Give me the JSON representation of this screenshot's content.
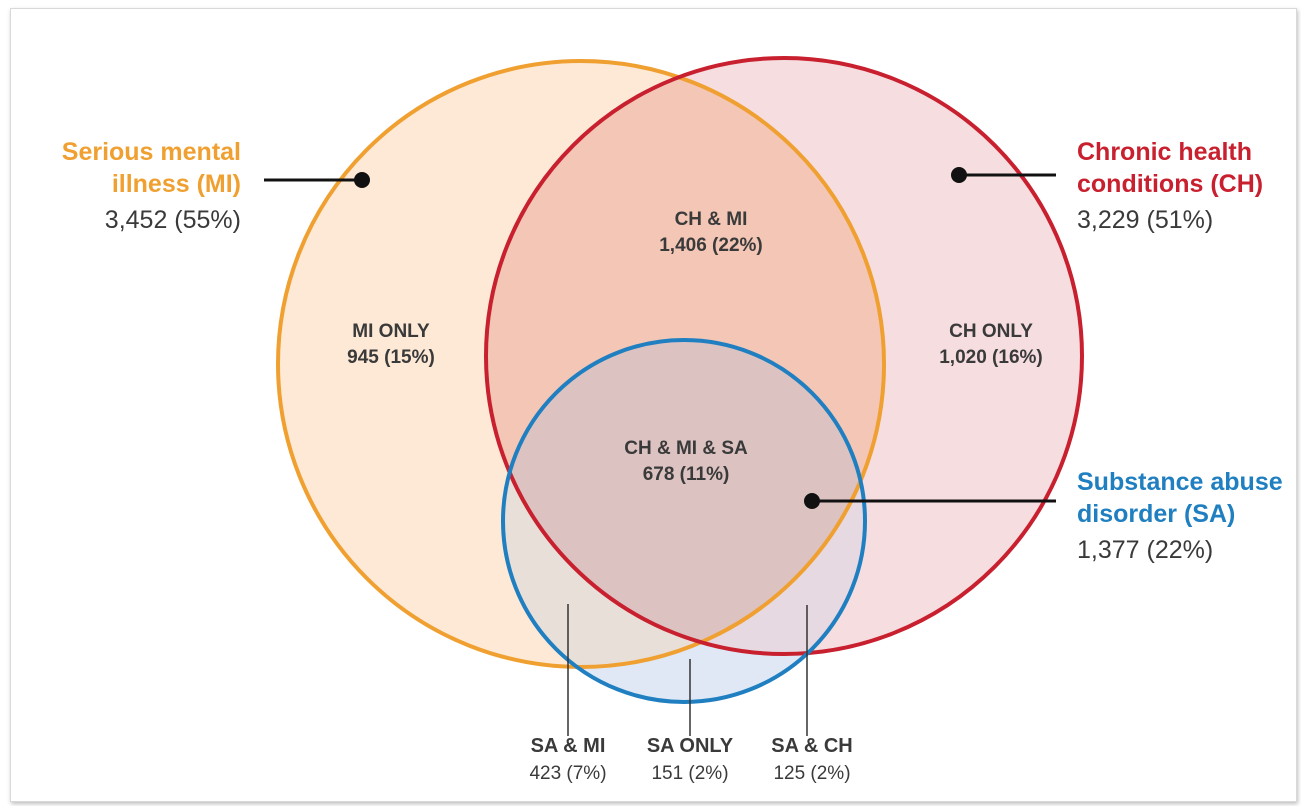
{
  "colors": {
    "mi": "#f0a030",
    "ch": "#c8202e",
    "sa": "#1f7fc0",
    "mi_fill": "#fde9d6",
    "ch_fill": "#f4d4d8",
    "sa_fill": "#dde7f3",
    "overlap_mi_ch": "#f3c9b7",
    "text": "#3a3a3a"
  },
  "categories": {
    "mi": {
      "title": "Serious mental illness (MI)",
      "title_line1": "Serious mental",
      "title_line2": "illness (MI)",
      "count": "3,452 (55%)"
    },
    "ch": {
      "title": "Chronic health conditions (CH)",
      "title_line1": "Chronic health",
      "title_line2": "conditions (CH)",
      "count": "3,229 (51%)"
    },
    "sa": {
      "title": "Substance abuse disorder (SA)",
      "title_line1": "Substance abuse",
      "title_line2": "disorder (SA)",
      "count": "1,377 (22%)"
    }
  },
  "segments": {
    "mi_only": {
      "label": "MI ONLY",
      "count": "945 (15%)"
    },
    "ch_only": {
      "label": "CH ONLY",
      "count": "1,020 (16%)"
    },
    "ch_mi": {
      "label": "CH & MI",
      "count": "1,406 (22%)"
    },
    "ch_mi_sa": {
      "label": "CH & MI & SA",
      "count": "678 (11%)"
    },
    "sa_mi": {
      "label": "SA & MI",
      "count": "423 (7%)"
    },
    "sa_only": {
      "label": "SA ONLY",
      "count": "151 (2%)"
    },
    "sa_ch": {
      "label": "SA & CH",
      "count": "125 (2%)"
    }
  }
}
